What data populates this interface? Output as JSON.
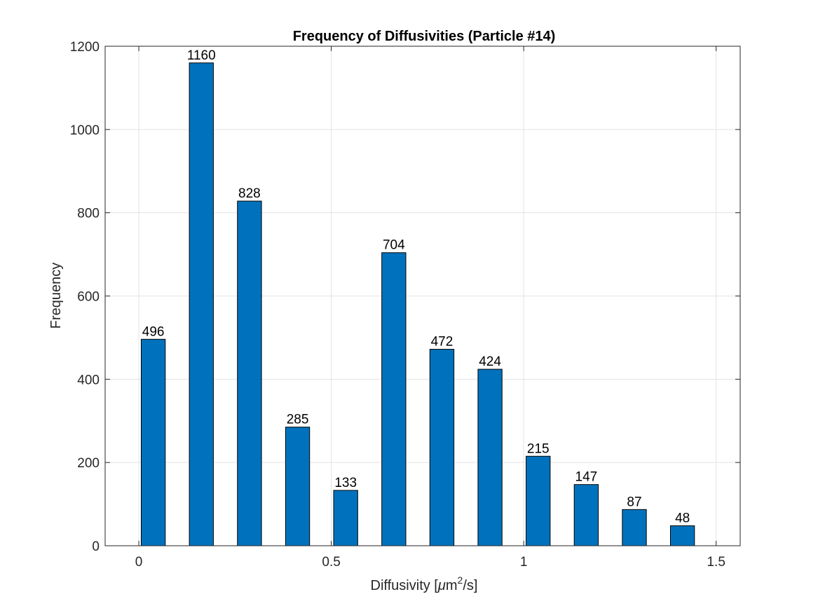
{
  "chart_data": {
    "type": "bar",
    "title": "Frequency of Diffusivities (Particle #14)",
    "xlabel": {
      "prefix": "Diffusivity [",
      "mu": "μ",
      "unit": "m",
      "sup": "2",
      "suffix": "/s]"
    },
    "ylabel": "Frequency",
    "x": [
      0.0375,
      0.1625,
      0.2875,
      0.4125,
      0.5375,
      0.6625,
      0.7875,
      0.9125,
      1.0375,
      1.1625,
      1.2875,
      1.4125
    ],
    "values": [
      496,
      1160,
      828,
      285,
      133,
      704,
      472,
      424,
      215,
      147,
      87,
      48
    ],
    "data_labels": [
      "496",
      "1160",
      "828",
      "285",
      "133",
      "704",
      "472",
      "424",
      "215",
      "147",
      "87",
      "48"
    ],
    "bar_width": 0.0625,
    "xlim": [
      -0.0875,
      1.5625
    ],
    "ylim": [
      0,
      1200
    ],
    "xticks": [
      0,
      0.5,
      1,
      1.5
    ],
    "xtick_labels": [
      "0",
      "0.5",
      "1",
      "1.5"
    ],
    "yticks": [
      0,
      200,
      400,
      600,
      800,
      1000,
      1200
    ],
    "ytick_labels": [
      "0",
      "200",
      "400",
      "600",
      "800",
      "1000",
      "1200"
    ],
    "grid": true,
    "bar_color": "#0072BD",
    "bar_edge_color": "#000000",
    "grid_color": "#e3e3e3",
    "axis_color": "#262626"
  }
}
